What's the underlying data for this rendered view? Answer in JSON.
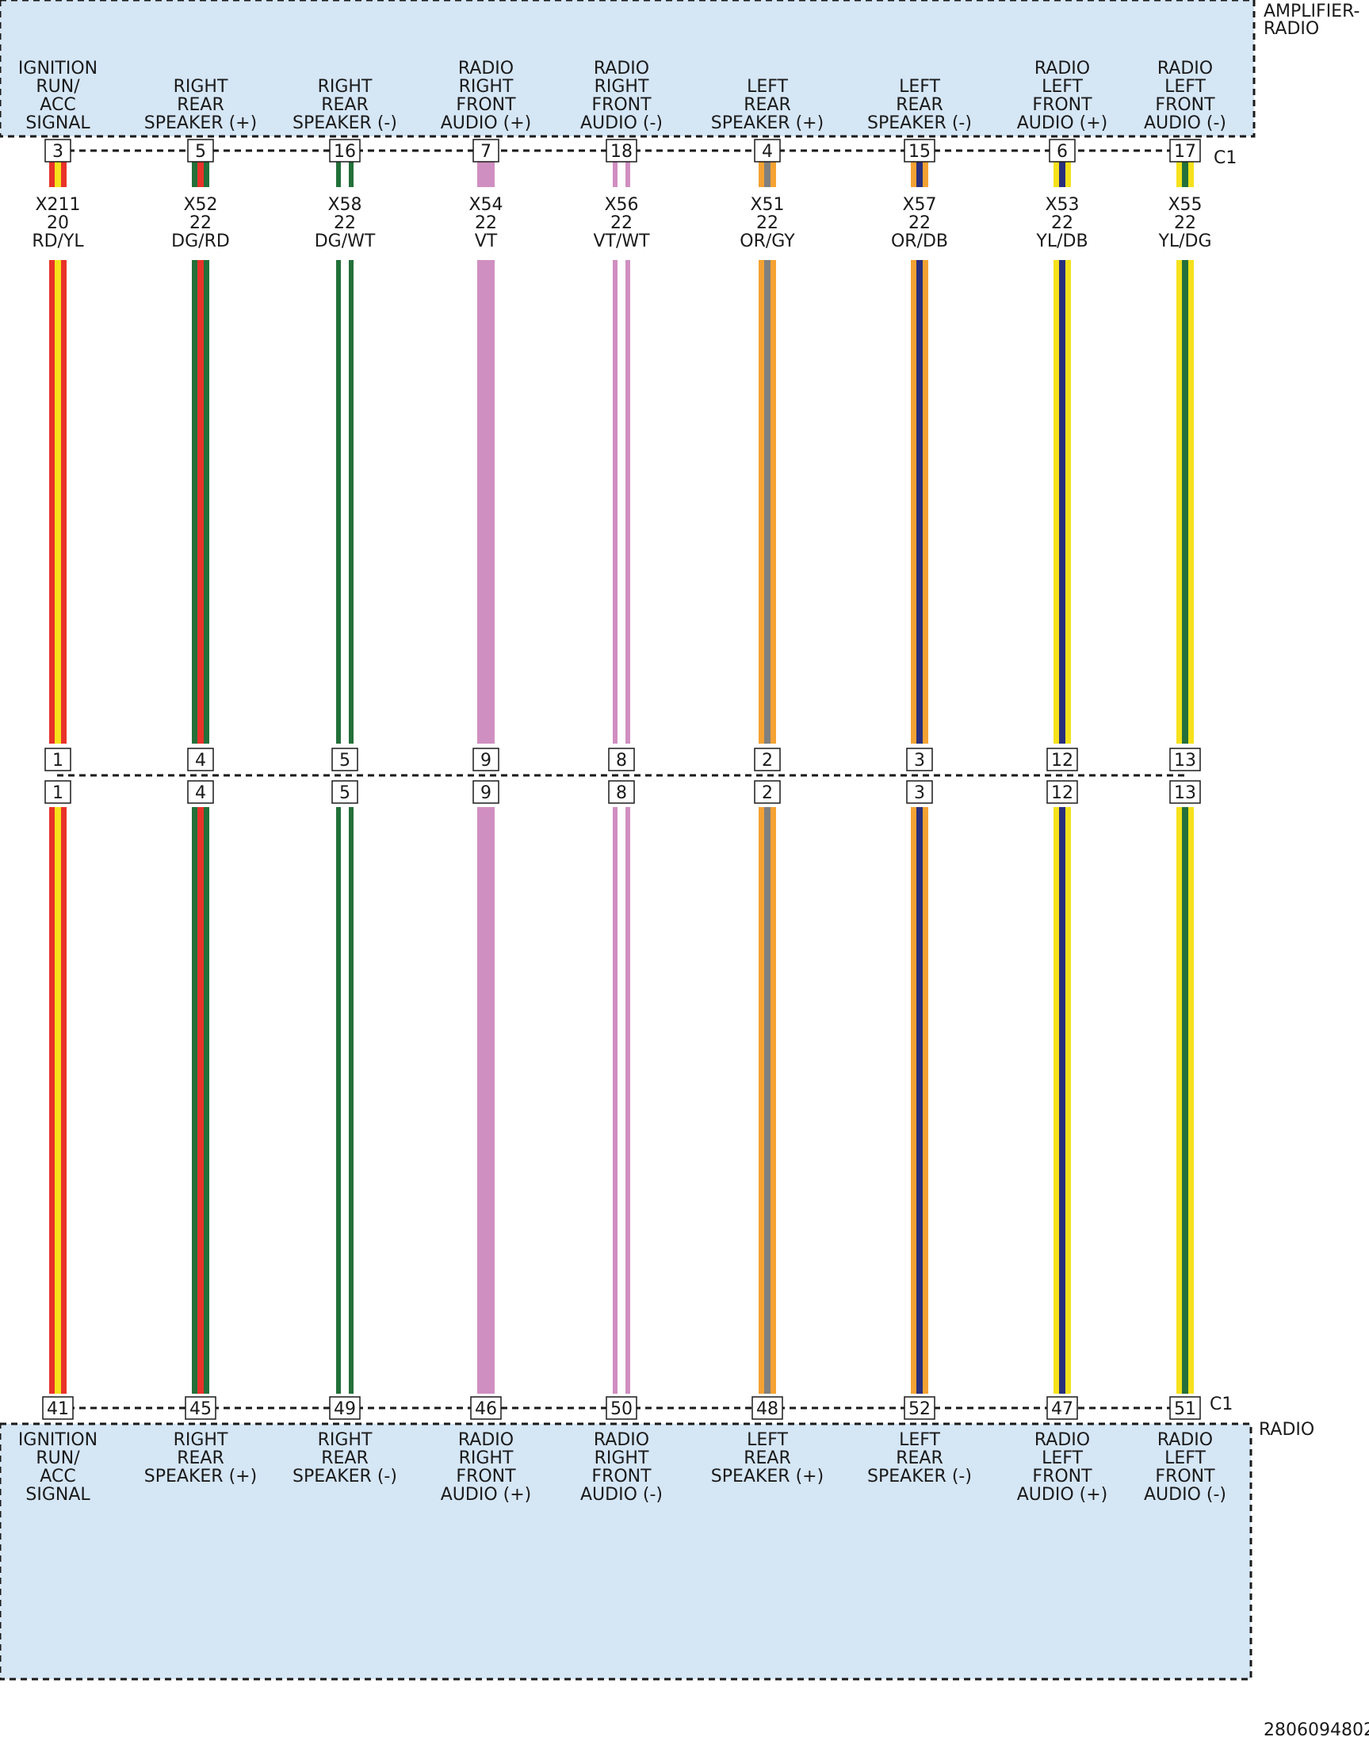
{
  "top_component": {
    "name_line1": "AMPLIFIER-",
    "name_line2": "RADIO",
    "connector": "C1"
  },
  "bottom_component": {
    "name": "RADIO",
    "connector": "C1"
  },
  "diagram_id": "2806094802",
  "colors": {
    "module_fill": "#d5e6f5",
    "RD": "#e8322a",
    "YL": "#f5e11c",
    "DG": "#23703a",
    "WT": "#ffffff",
    "VT": "#d08fc1",
    "OR": "#f4a233",
    "GY": "#808080",
    "DB": "#2a2f7c"
  },
  "circuits": [
    {
      "top_func": [
        "IGNITION",
        "RUN/",
        "ACC",
        "SIGNAL"
      ],
      "top_pin": "3",
      "circuit": "X211",
      "gauge": "20",
      "color": "RD/YL",
      "mid_top_pin": "1",
      "mid_bottom_pin": "1",
      "bottom_pin": "41",
      "bottom_func": [
        "IGNITION",
        "RUN/",
        "ACC",
        "SIGNAL"
      ],
      "base": "RD",
      "stripe": "YL"
    },
    {
      "top_func": [
        "RIGHT",
        "REAR",
        "SPEAKER (+)"
      ],
      "top_pin": "5",
      "circuit": "X52",
      "gauge": "22",
      "color": "DG/RD",
      "mid_top_pin": "4",
      "mid_bottom_pin": "4",
      "bottom_pin": "45",
      "bottom_func": [
        "RIGHT",
        "REAR",
        "SPEAKER (+)"
      ],
      "base": "DG",
      "stripe": "RD"
    },
    {
      "top_func": [
        "RIGHT",
        "REAR",
        "SPEAKER (-)"
      ],
      "top_pin": "16",
      "circuit": "X58",
      "gauge": "22",
      "color": "DG/WT",
      "mid_top_pin": "5",
      "mid_bottom_pin": "5",
      "bottom_pin": "49",
      "bottom_func": [
        "RIGHT",
        "REAR",
        "SPEAKER (-)"
      ],
      "base": "DG",
      "stripe": "WT"
    },
    {
      "top_func": [
        "RADIO",
        "RIGHT",
        "FRONT",
        "AUDIO (+)"
      ],
      "top_pin": "7",
      "circuit": "X54",
      "gauge": "22",
      "color": "VT",
      "mid_top_pin": "9",
      "mid_bottom_pin": "9",
      "bottom_pin": "46",
      "bottom_func": [
        "RADIO",
        "RIGHT",
        "FRONT",
        "AUDIO (+)"
      ],
      "base": "VT",
      "stripe": ""
    },
    {
      "top_func": [
        "RADIO",
        "RIGHT",
        "FRONT",
        "AUDIO (-)"
      ],
      "top_pin": "18",
      "circuit": "X56",
      "gauge": "22",
      "color": "VT/WT",
      "mid_top_pin": "8",
      "mid_bottom_pin": "8",
      "bottom_pin": "50",
      "bottom_func": [
        "RADIO",
        "RIGHT",
        "FRONT",
        "AUDIO (-)"
      ],
      "base": "VT",
      "stripe": "WT"
    },
    {
      "top_func": [
        "LEFT",
        "REAR",
        "SPEAKER (+)"
      ],
      "top_pin": "4",
      "circuit": "X51",
      "gauge": "22",
      "color": "OR/GY",
      "mid_top_pin": "2",
      "mid_bottom_pin": "2",
      "bottom_pin": "48",
      "bottom_func": [
        "LEFT",
        "REAR",
        "SPEAKER (+)"
      ],
      "base": "OR",
      "stripe": "GY"
    },
    {
      "top_func": [
        "LEFT",
        "REAR",
        "SPEAKER (-)"
      ],
      "top_pin": "15",
      "circuit": "X57",
      "gauge": "22",
      "color": "OR/DB",
      "mid_top_pin": "3",
      "mid_bottom_pin": "3",
      "bottom_pin": "52",
      "bottom_func": [
        "LEFT",
        "REAR",
        "SPEAKER (-)"
      ],
      "base": "OR",
      "stripe": "DB"
    },
    {
      "top_func": [
        "RADIO",
        "LEFT",
        "FRONT",
        "AUDIO (+)"
      ],
      "top_pin": "6",
      "circuit": "X53",
      "gauge": "22",
      "color": "YL/DB",
      "mid_top_pin": "12",
      "mid_bottom_pin": "12",
      "bottom_pin": "47",
      "bottom_func": [
        "RADIO",
        "LEFT",
        "FRONT",
        "AUDIO (+)"
      ],
      "base": "YL",
      "stripe": "DB"
    },
    {
      "top_func": [
        "RADIO",
        "LEFT",
        "FRONT",
        "AUDIO (-)"
      ],
      "top_pin": "17",
      "circuit": "X55",
      "gauge": "22",
      "color": "YL/DG",
      "mid_top_pin": "13",
      "mid_bottom_pin": "13",
      "bottom_pin": "51",
      "bottom_func": [
        "RADIO",
        "LEFT",
        "FRONT",
        "AUDIO (-)"
      ],
      "base": "YL",
      "stripe": "DG"
    }
  ]
}
